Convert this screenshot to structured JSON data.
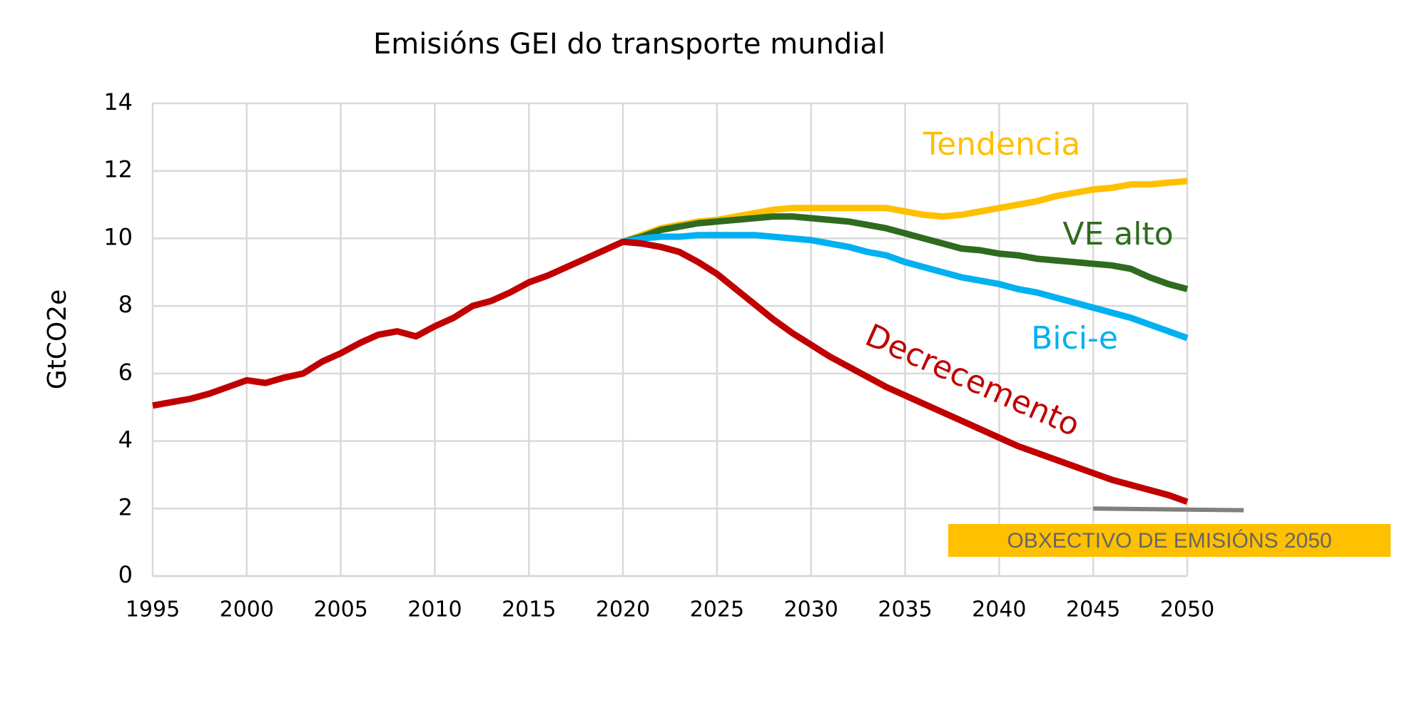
{
  "chart_data": {
    "type": "line",
    "title": "Emisións GEI do transporte mundial",
    "y_label": "GtCO2e",
    "x": [
      1995,
      1996,
      1997,
      1998,
      1999,
      2000,
      2001,
      2002,
      2003,
      2004,
      2005,
      2006,
      2007,
      2008,
      2009,
      2010,
      2011,
      2012,
      2013,
      2014,
      2015,
      2016,
      2017,
      2018,
      2019,
      2020,
      2021,
      2022,
      2023,
      2024,
      2025,
      2026,
      2027,
      2028,
      2029,
      2030,
      2031,
      2032,
      2033,
      2034,
      2035,
      2036,
      2037,
      2038,
      2039,
      2040,
      2041,
      2042,
      2043,
      2044,
      2045,
      2046,
      2047,
      2048,
      2049,
      2050
    ],
    "series": [
      {
        "name": "Tendencia",
        "color": "#ffc000",
        "values": [
          null,
          null,
          null,
          null,
          null,
          null,
          null,
          null,
          null,
          null,
          null,
          null,
          null,
          null,
          null,
          null,
          null,
          null,
          null,
          null,
          null,
          null,
          null,
          null,
          null,
          9.9,
          10.1,
          10.3,
          10.4,
          10.5,
          10.55,
          10.65,
          10.75,
          10.85,
          10.9,
          10.9,
          10.9,
          10.9,
          10.9,
          10.9,
          10.8,
          10.7,
          10.65,
          10.7,
          10.8,
          10.9,
          11.0,
          11.1,
          11.25,
          11.35,
          11.45,
          11.5,
          11.6,
          11.6,
          11.65,
          11.7
        ]
      },
      {
        "name": "VE alto",
        "color": "#2e6b1f",
        "values": [
          null,
          null,
          null,
          null,
          null,
          null,
          null,
          null,
          null,
          null,
          null,
          null,
          null,
          null,
          null,
          null,
          null,
          null,
          null,
          null,
          null,
          null,
          null,
          null,
          null,
          9.9,
          10.05,
          10.25,
          10.35,
          10.45,
          10.5,
          10.55,
          10.6,
          10.65,
          10.65,
          10.6,
          10.55,
          10.5,
          10.4,
          10.3,
          10.15,
          10.0,
          9.85,
          9.7,
          9.65,
          9.55,
          9.5,
          9.4,
          9.35,
          9.3,
          9.25,
          9.2,
          9.1,
          8.85,
          8.65,
          8.5
        ]
      },
      {
        "name": "Bici-e",
        "color": "#00b0f0",
        "values": [
          null,
          null,
          null,
          null,
          null,
          null,
          null,
          null,
          null,
          null,
          null,
          null,
          null,
          null,
          null,
          null,
          null,
          null,
          null,
          null,
          null,
          null,
          null,
          null,
          null,
          9.9,
          10.0,
          10.05,
          10.05,
          10.1,
          10.1,
          10.1,
          10.1,
          10.05,
          10.0,
          9.95,
          9.85,
          9.75,
          9.6,
          9.5,
          9.3,
          9.15,
          9.0,
          8.85,
          8.75,
          8.65,
          8.5,
          8.4,
          8.25,
          8.1,
          7.95,
          7.8,
          7.65,
          7.45,
          7.25,
          7.05
        ]
      },
      {
        "name": "Decrecemento",
        "color": "#c00000",
        "values": [
          5.05,
          5.15,
          5.25,
          5.4,
          5.6,
          5.8,
          5.72,
          5.88,
          6.0,
          6.35,
          6.6,
          6.9,
          7.15,
          7.25,
          7.1,
          7.4,
          7.65,
          8.0,
          8.15,
          8.4,
          8.7,
          8.9,
          9.15,
          9.4,
          9.65,
          9.9,
          9.85,
          9.75,
          9.6,
          9.3,
          8.95,
          8.5,
          8.05,
          7.6,
          7.2,
          6.85,
          6.5,
          6.2,
          5.9,
          5.6,
          5.35,
          5.1,
          4.85,
          4.6,
          4.35,
          4.1,
          3.85,
          3.65,
          3.45,
          3.25,
          3.05,
          2.85,
          2.7,
          2.55,
          2.4,
          2.2
        ]
      }
    ],
    "target": {
      "label": "OBXECTIVO DE EMISIÓNS 2050",
      "color": "#808080",
      "x": [
        2045,
        2053
      ],
      "values": [
        2.0,
        1.95
      ]
    },
    "xlim": [
      1995,
      2050
    ],
    "xticks": [
      1995,
      2000,
      2005,
      2010,
      2015,
      2020,
      2025,
      2030,
      2035,
      2040,
      2045,
      2050
    ],
    "ylim": [
      0,
      14
    ],
    "yticks": [
      0,
      2,
      4,
      6,
      8,
      10,
      12,
      14
    ],
    "grid": true
  }
}
